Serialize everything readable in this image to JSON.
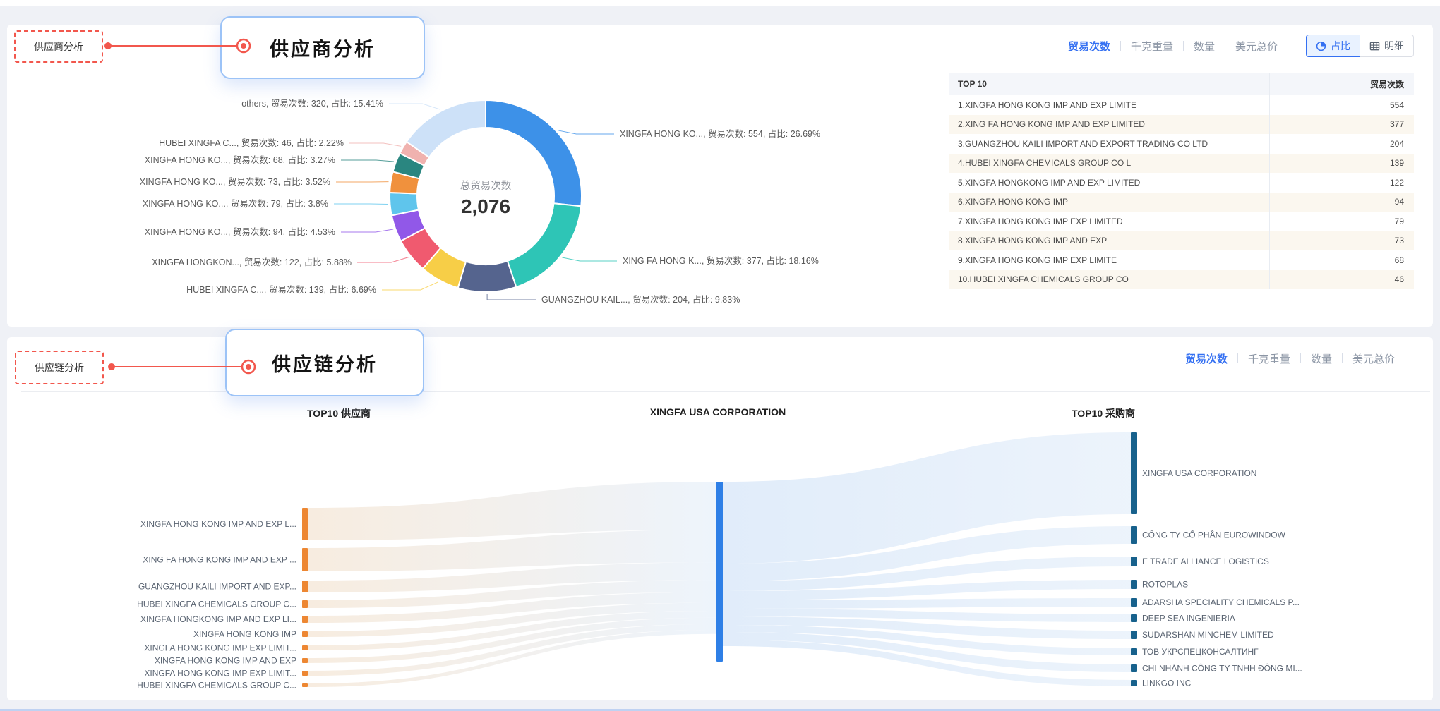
{
  "supplier_section": {
    "tag_label": "供应商分析",
    "callout_title": "供应商分析",
    "metric_tabs": [
      "贸易次数",
      "千克重量",
      "数量",
      "美元总价"
    ],
    "active_tab": "贸易次数",
    "view_toggle": {
      "ratio_label": "占比",
      "detail_label": "明细",
      "active": "占比"
    },
    "chart_data": {
      "type": "pie",
      "metric": "贸易次数",
      "center_title": "总贸易次数",
      "center_value": "2,076",
      "total": 2076,
      "slices": [
        {
          "name": "XINGFA HONG KO...",
          "value": 554,
          "pct": "26.69%",
          "color": "#3D91E8",
          "label": "XINGFA HONG KO...,  贸易次数: 554,  占比: 26.69%"
        },
        {
          "name": "XING FA HONG K...",
          "value": 377,
          "pct": "18.16%",
          "color": "#2EC5B6",
          "label": "XING FA HONG K...,  贸易次数: 377,  占比: 18.16%"
        },
        {
          "name": "GUANGZHOU KAIL...",
          "value": 204,
          "pct": "9.83%",
          "color": "#55648E",
          "label": "GUANGZHOU KAIL...,  贸易次数: 204,  占比: 9.83%"
        },
        {
          "name": "HUBEI XINGFA C...",
          "value": 139,
          "pct": "6.69%",
          "color": "#F7CE47",
          "label": "HUBEI XINGFA C...,  贸易次数: 139,  占比: 6.69%"
        },
        {
          "name": "XINGFA HONGKON...",
          "value": 122,
          "pct": "5.88%",
          "color": "#F05A6F",
          "label": "XINGFA HONGKON...,  贸易次数: 122,  占比: 5.88%"
        },
        {
          "name": "XINGFA HONG KO...",
          "value": 94,
          "pct": "4.53%",
          "color": "#9158E8",
          "label": "XINGFA HONG KO...,  贸易次数: 94,  占比: 4.53%"
        },
        {
          "name": "XINGFA HONG KO...",
          "value": 79,
          "pct": "3.8%",
          "color": "#5FC5EC",
          "label": "XINGFA HONG KO...,  贸易次数: 79,  占比: 3.8%"
        },
        {
          "name": "XINGFA HONG KO...",
          "value": 73,
          "pct": "3.52%",
          "color": "#F0913D",
          "label": "XINGFA HONG KO...,  贸易次数: 73,  占比: 3.52%"
        },
        {
          "name": "XINGFA HONG KO...",
          "value": 68,
          "pct": "3.27%",
          "color": "#2A8680",
          "label": "XINGFA HONG KO...,  贸易次数: 68,  占比: 3.27%"
        },
        {
          "name": "HUBEI XINGFA C...",
          "value": 46,
          "pct": "2.22%",
          "color": "#F0B2AF",
          "label": "HUBEI XINGFA C...,  贸易次数: 46,  占比: 2.22%"
        },
        {
          "name": "others",
          "value": 320,
          "pct": "15.41%",
          "color": "#CDE1F8",
          "label": "others,  贸易次数: 320,  占比: 15.41%"
        }
      ]
    },
    "table": {
      "headers": [
        "TOP 10",
        "贸易次数"
      ],
      "rows": [
        {
          "name": "1.XINGFA HONG KONG IMP AND EXP LIMITE",
          "value": 554
        },
        {
          "name": "2.XING FA HONG KONG IMP AND EXP LIMITED",
          "value": 377
        },
        {
          "name": "3.GUANGZHOU KAILI IMPORT AND EXPORT TRADING CO LTD",
          "value": 204
        },
        {
          "name": "4.HUBEI XINGFA CHEMICALS GROUP CO L",
          "value": 139
        },
        {
          "name": "5.XINGFA HONGKONG IMP AND EXP LIMITED",
          "value": 122
        },
        {
          "name": "6.XINGFA HONG KONG IMP",
          "value": 94
        },
        {
          "name": "7.XINGFA HONG KONG IMP EXP LIMITED",
          "value": 79
        },
        {
          "name": "8.XINGFA HONG KONG IMP AND EXP",
          "value": 73
        },
        {
          "name": "9.XINGFA HONG KONG IMP EXP LIMITE",
          "value": 68
        },
        {
          "name": "10.HUBEI XINGFA CHEMICALS GROUP CO",
          "value": 46
        }
      ]
    }
  },
  "supplychain_section": {
    "tag_label": "供应链分析",
    "callout_title": "供应链分析",
    "metric_tabs": [
      "贸易次数",
      "千克重量",
      "数量",
      "美元总价"
    ],
    "active_tab": "贸易次数",
    "chart_data": {
      "type": "sankey",
      "column_headers": [
        "TOP10 供应商",
        "XINGFA USA CORPORATION",
        "TOP10 采购商"
      ],
      "center_node": "XINGFA USA CORPORATION",
      "total": 2076,
      "suppliers": [
        {
          "name": "XINGFA HONG KONG IMP AND EXP L...",
          "weight": 554
        },
        {
          "name": "XING FA HONG KONG IMP AND EXP ...",
          "weight": 377
        },
        {
          "name": "GUANGZHOU KAILI IMPORT AND EXP...",
          "weight": 204
        },
        {
          "name": "HUBEI XINGFA CHEMICALS GROUP C...",
          "weight": 139
        },
        {
          "name": "XINGFA HONGKONG IMP AND EXP LI...",
          "weight": 122
        },
        {
          "name": "XINGFA HONG KONG IMP",
          "weight": 94
        },
        {
          "name": "XINGFA HONG KONG IMP EXP LIMIT...",
          "weight": 79
        },
        {
          "name": "XINGFA HONG KONG IMP AND EXP",
          "weight": 73
        },
        {
          "name": "XINGFA HONG KONG IMP EXP LIMIT...",
          "weight": 68
        },
        {
          "name": "HUBEI XINGFA CHEMICALS GROUP C...",
          "weight": 46
        }
      ],
      "buyers": [
        {
          "name": "XINGFA USA CORPORATION",
          "weight": 950
        },
        {
          "name": "CÔNG TY CỔ PHẦN EUROWINDOW",
          "weight": 205
        },
        {
          "name": "E TRADE ALLIANCE LOGISTICS",
          "weight": 130
        },
        {
          "name": "ROTOPLAS",
          "weight": 106
        },
        {
          "name": "ADARSHA SPECIALITY CHEMICALS P...",
          "weight": 98
        },
        {
          "name": "DEEP SEA INGENIERIA",
          "weight": 90
        },
        {
          "name": "SUDARSHAN MINCHEM LIMITED",
          "weight": 98
        },
        {
          "name": "ТОВ УКРСПЕЦКОНСАЛТИНГ",
          "weight": 82
        },
        {
          "name": "CHI NHÁNH CÔNG TY TNHH ĐÔNG MI...",
          "weight": 90
        },
        {
          "name": "LINKGO INC",
          "weight": 74
        }
      ]
    }
  }
}
